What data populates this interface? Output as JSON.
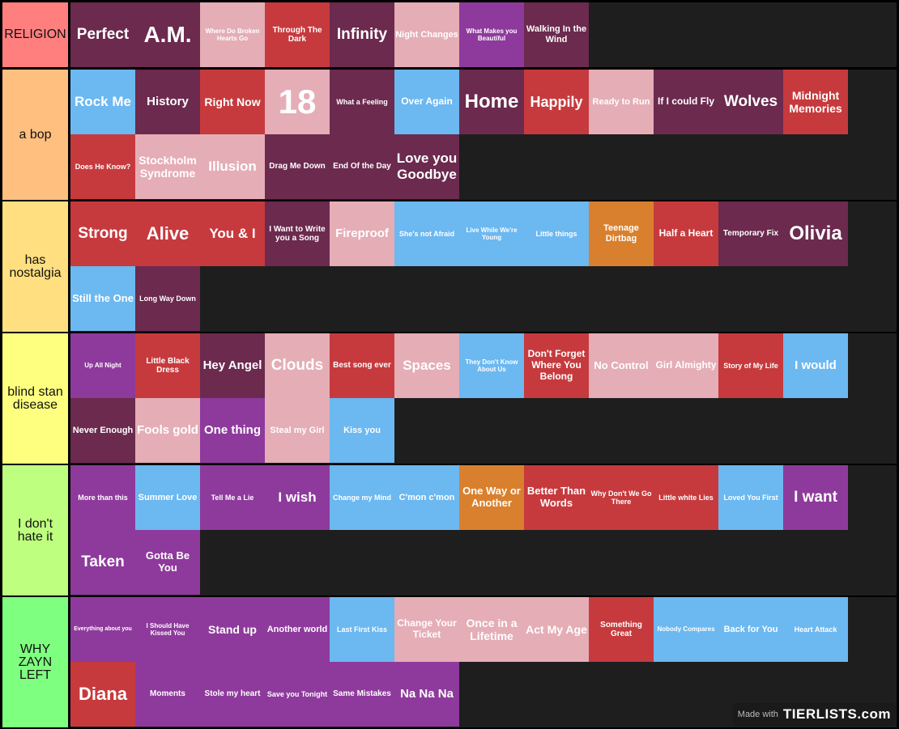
{
  "colors": {
    "maroon": "#6b2a4e",
    "pink": "#e5adb6",
    "red": "#c63a3d",
    "purple": "#8e3a9c",
    "blue": "#6cb8f0",
    "orange": "#d9802e"
  },
  "tiers": [
    {
      "label": "RELIGION",
      "color": "#ff7f7f",
      "items": [
        {
          "text": "Perfect",
          "bg": "maroon",
          "size": 19
        },
        {
          "text": "A.M.",
          "bg": "maroon",
          "size": 28
        },
        {
          "text": "Where Do Broken Hearts Go",
          "bg": "pink",
          "size": 8
        },
        {
          "text": "Through The Dark",
          "bg": "red",
          "size": 10
        },
        {
          "text": "Infinity",
          "bg": "maroon",
          "size": 19
        },
        {
          "text": "Night Changes",
          "bg": "pink",
          "size": 11
        },
        {
          "text": "What Makes you Beautiful",
          "bg": "purple",
          "size": 8
        },
        {
          "text": "Walking In the Wind",
          "bg": "maroon",
          "size": 11
        }
      ]
    },
    {
      "label": "a bop",
      "color": "#ffbf7f",
      "items": [
        {
          "text": "Rock Me",
          "bg": "blue",
          "size": 17
        },
        {
          "text": "History",
          "bg": "maroon",
          "size": 15
        },
        {
          "text": "Right Now",
          "bg": "red",
          "size": 14
        },
        {
          "text": "18",
          "bg": "pink",
          "size": 42
        },
        {
          "text": "What a Feeling",
          "bg": "maroon",
          "size": 9
        },
        {
          "text": "Over Again",
          "bg": "blue",
          "size": 12
        },
        {
          "text": "Home",
          "bg": "maroon",
          "size": 24
        },
        {
          "text": "Happily",
          "bg": "red",
          "size": 18
        },
        {
          "text": "Ready to Run",
          "bg": "pink",
          "size": 11
        },
        {
          "text": "If I could Fly",
          "bg": "maroon",
          "size": 12
        },
        {
          "text": "Wolves",
          "bg": "maroon",
          "size": 19
        },
        {
          "text": "Midnight Memories",
          "bg": "red",
          "size": 14
        },
        {
          "text": "Does He Know?",
          "bg": "red",
          "size": 9
        },
        {
          "text": "Stockholm Syndrome",
          "bg": "pink",
          "size": 14
        },
        {
          "text": "Illusion",
          "bg": "pink",
          "size": 17
        },
        {
          "text": "Drag Me Down",
          "bg": "maroon",
          "size": 10
        },
        {
          "text": "End Of the Day",
          "bg": "maroon",
          "size": 10
        },
        {
          "text": "Love you Goodbye",
          "bg": "maroon",
          "size": 17
        }
      ]
    },
    {
      "label": "has nostalgia",
      "color": "#ffdf7f",
      "items": [
        {
          "text": "Strong",
          "bg": "red",
          "size": 19
        },
        {
          "text": "Alive",
          "bg": "red",
          "size": 22
        },
        {
          "text": "You & I",
          "bg": "red",
          "size": 17
        },
        {
          "text": "I Want to Write you a Song",
          "bg": "maroon",
          "size": 10
        },
        {
          "text": "Fireproof",
          "bg": "pink",
          "size": 15
        },
        {
          "text": "She's not Afraid",
          "bg": "blue",
          "size": 9
        },
        {
          "text": "Live While We're Young",
          "bg": "blue",
          "size": 8
        },
        {
          "text": "Little things",
          "bg": "blue",
          "size": 9
        },
        {
          "text": "Teenage Dirtbag",
          "bg": "orange",
          "size": 11
        },
        {
          "text": "Half a Heart",
          "bg": "red",
          "size": 12
        },
        {
          "text": "Temporary Fix",
          "bg": "maroon",
          "size": 10
        },
        {
          "text": "Olivia",
          "bg": "maroon",
          "size": 24
        },
        {
          "text": "Still the One",
          "bg": "blue",
          "size": 13
        },
        {
          "text": "Long Way Down",
          "bg": "maroon",
          "size": 9
        }
      ]
    },
    {
      "label": "blind stan disease",
      "color": "#ffff7f",
      "items": [
        {
          "text": "Up All Night",
          "bg": "purple",
          "size": 8
        },
        {
          "text": "Little Black Dress",
          "bg": "red",
          "size": 10
        },
        {
          "text": "Hey Angel",
          "bg": "maroon",
          "size": 15
        },
        {
          "text": "Clouds",
          "bg": "pink",
          "size": 19
        },
        {
          "text": "Best song ever",
          "bg": "red",
          "size": 10
        },
        {
          "text": "Spaces",
          "bg": "pink",
          "size": 17
        },
        {
          "text": "They Don't Know About Us",
          "bg": "blue",
          "size": 8
        },
        {
          "text": "Don't Forget Where You Belong",
          "bg": "red",
          "size": 12
        },
        {
          "text": "No Control",
          "bg": "pink",
          "size": 13
        },
        {
          "text": "Girl Almighty",
          "bg": "pink",
          "size": 12
        },
        {
          "text": "Story of My Life",
          "bg": "red",
          "size": 9
        },
        {
          "text": "I would",
          "bg": "blue",
          "size": 15
        },
        {
          "text": "Never Enough",
          "bg": "maroon",
          "size": 11
        },
        {
          "text": "Fools gold",
          "bg": "pink",
          "size": 15
        },
        {
          "text": "One thing",
          "bg": "purple",
          "size": 15
        },
        {
          "text": "Steal my Girl",
          "bg": "pink",
          "size": 11
        },
        {
          "text": "Kiss you",
          "bg": "blue",
          "size": 11
        }
      ]
    },
    {
      "label": "I don't hate it",
      "color": "#bfff7f",
      "items": [
        {
          "text": "More than this",
          "bg": "purple",
          "size": 9
        },
        {
          "text": "Summer Love",
          "bg": "blue",
          "size": 11
        },
        {
          "text": "Tell Me a Lie",
          "bg": "purple",
          "size": 9
        },
        {
          "text": "I wish",
          "bg": "purple",
          "size": 17
        },
        {
          "text": "Change my Mind",
          "bg": "blue",
          "size": 9
        },
        {
          "text": "C'mon c'mon",
          "bg": "blue",
          "size": 11
        },
        {
          "text": "One Way or Another",
          "bg": "orange",
          "size": 13
        },
        {
          "text": "Better Than Words",
          "bg": "red",
          "size": 13
        },
        {
          "text": "Why Don't We Go There",
          "bg": "red",
          "size": 9
        },
        {
          "text": "Little white Lies",
          "bg": "red",
          "size": 9
        },
        {
          "text": "Loved You First",
          "bg": "blue",
          "size": 9
        },
        {
          "text": "I want",
          "bg": "purple",
          "size": 19
        },
        {
          "text": "Taken",
          "bg": "purple",
          "size": 19
        },
        {
          "text": "Gotta Be You",
          "bg": "purple",
          "size": 13
        }
      ]
    },
    {
      "label": "WHY ZAYN LEFT",
      "color": "#7fff7f",
      "items": [
        {
          "text": "Everything about you",
          "bg": "purple",
          "size": 7
        },
        {
          "text": "I Should Have Kissed You",
          "bg": "purple",
          "size": 8
        },
        {
          "text": "Stand up",
          "bg": "purple",
          "size": 14
        },
        {
          "text": "Another world",
          "bg": "purple",
          "size": 11
        },
        {
          "text": "Last First Kiss",
          "bg": "blue",
          "size": 9
        },
        {
          "text": "Change Your Ticket",
          "bg": "pink",
          "size": 12
        },
        {
          "text": "Once in a Lifetime",
          "bg": "pink",
          "size": 14
        },
        {
          "text": "Act My Age",
          "bg": "pink",
          "size": 14
        },
        {
          "text": "Something Great",
          "bg": "red",
          "size": 10
        },
        {
          "text": "Nobody Compares",
          "bg": "blue",
          "size": 8
        },
        {
          "text": "Back for You",
          "bg": "blue",
          "size": 11
        },
        {
          "text": "Heart Attack",
          "bg": "blue",
          "size": 9
        },
        {
          "text": "Diana",
          "bg": "red",
          "size": 22
        },
        {
          "text": "Moments",
          "bg": "purple",
          "size": 10
        },
        {
          "text": "Stole my heart",
          "bg": "purple",
          "size": 10
        },
        {
          "text": "Save you Tonight",
          "bg": "purple",
          "size": 9
        },
        {
          "text": "Same Mistakes",
          "bg": "purple",
          "size": 10
        },
        {
          "text": "Na Na Na",
          "bg": "purple",
          "size": 15
        }
      ]
    }
  ],
  "footer": {
    "made_with": "Made with",
    "logo": "TIERLISTS.com"
  }
}
